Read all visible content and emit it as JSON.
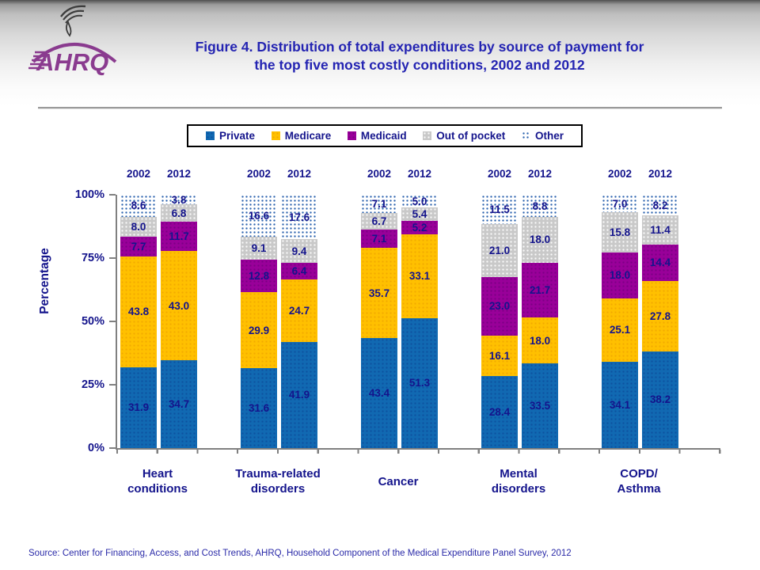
{
  "header": {
    "logo_text": "AHRQ",
    "title_lines": [
      "Figure 4. Distribution of total expenditures by source of payment for",
      "the top five most costly conditions, 2002 and 2012"
    ]
  },
  "legend": {
    "items": [
      {
        "label": "Private",
        "color": "#1169B2",
        "pattern": "solid"
      },
      {
        "label": "Medicare",
        "color": "#FFC000",
        "pattern": "solid"
      },
      {
        "label": "Medicaid",
        "color": "#990099",
        "pattern": "solid"
      },
      {
        "label": "Out of pocket",
        "color": "#C9C9C9",
        "pattern": "solid"
      },
      {
        "label": "Other",
        "color": "#2B62AE",
        "pattern": "dots-on-white"
      }
    ]
  },
  "chart_data": {
    "type": "bar",
    "stacked": true,
    "title": "Figure 4. Distribution of total expenditures by source of payment for the top five most costly conditions, 2002 and 2012",
    "xlabel": "",
    "ylabel": "Percentage",
    "ylim": [
      0,
      100
    ],
    "yticks": [
      {
        "label": "0%",
        "value": 0
      },
      {
        "label": "25%",
        "value": 25
      },
      {
        "label": "50%",
        "value": 50
      },
      {
        "label": "75%",
        "value": 75
      },
      {
        "label": "100%",
        "value": 100
      }
    ],
    "grid": false,
    "legend_position": "top",
    "series_names": [
      "Private",
      "Medicare",
      "Medicaid",
      "Out of pocket",
      "Other"
    ],
    "series_colors": [
      "#1169B2",
      "#FFC000",
      "#990099",
      "#C9C9C9",
      "dotted-white-blue"
    ],
    "groups": [
      {
        "label": "Heart\nconditions",
        "bars": [
          {
            "year": "2002",
            "values": [
              31.9,
              43.8,
              7.7,
              8.0,
              8.6
            ]
          },
          {
            "year": "2012",
            "values": [
              34.7,
              43.0,
              11.7,
              6.8,
              3.8
            ]
          }
        ]
      },
      {
        "label": "Trauma-related\ndisorders",
        "bars": [
          {
            "year": "2002",
            "values": [
              31.6,
              29.9,
              12.8,
              9.1,
              16.6
            ]
          },
          {
            "year": "2012",
            "values": [
              41.9,
              24.7,
              6.4,
              9.4,
              17.6
            ]
          }
        ]
      },
      {
        "label": "Cancer",
        "bars": [
          {
            "year": "2002",
            "values": [
              43.4,
              35.7,
              7.1,
              6.7,
              7.1
            ]
          },
          {
            "year": "2012",
            "values": [
              51.3,
              33.1,
              5.2,
              5.4,
              5.0
            ]
          }
        ]
      },
      {
        "label": "Mental\ndisorders",
        "bars": [
          {
            "year": "2002",
            "values": [
              28.4,
              16.1,
              23.0,
              21.0,
              11.5
            ]
          },
          {
            "year": "2012",
            "values": [
              33.5,
              18.0,
              21.7,
              18.0,
              8.8
            ]
          }
        ]
      },
      {
        "label": "COPD/\nAsthma",
        "bars": [
          {
            "year": "2002",
            "values": [
              34.1,
              25.1,
              18.0,
              15.8,
              7.0
            ]
          },
          {
            "year": "2012",
            "values": [
              38.2,
              27.8,
              14.4,
              11.4,
              8.2
            ]
          }
        ]
      }
    ]
  },
  "footer": {
    "source": "Source: Center for Financing, Access, and Cost Trends, AHRQ, Household Component of the Medical Expenditure Panel Survey, 2012"
  }
}
